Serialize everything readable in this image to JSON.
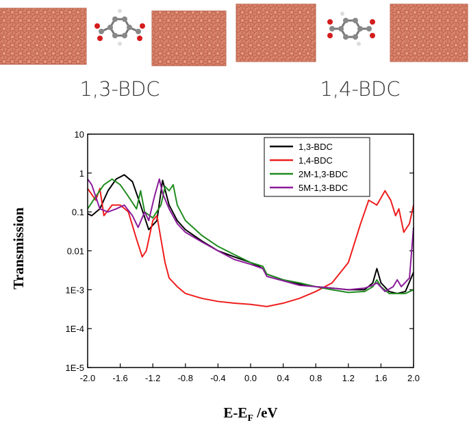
{
  "structures": {
    "labels": [
      "1,3-BDC",
      "1,4-BDC"
    ]
  },
  "chart_data": {
    "type": "line",
    "xlabel": [
      "E-E",
      "F",
      " /eV"
    ],
    "ylabel": "Transmission",
    "log_y": true,
    "legend": "upper right",
    "xlim": [
      -2.0,
      2.0
    ],
    "ylim": [
      1e-05,
      10
    ],
    "xticks": [
      {
        "value": -2.0,
        "label": "-2.0"
      },
      -1.6,
      -1.2,
      -0.8,
      -0.4,
      {
        "value": 0.0,
        "label": "0.0"
      },
      0.4,
      0.8,
      1.2,
      1.6,
      {
        "value": 2.0,
        "label": "2.0"
      }
    ],
    "yticks": [
      10,
      1,
      0.1,
      0.01,
      {
        "value": 0.001,
        "label": "1E-3"
      },
      {
        "value": 0.0001,
        "label": "1E-4"
      },
      {
        "value": 1e-05,
        "label": "1E-5"
      }
    ],
    "series": [
      {
        "name": "1,3-BDC",
        "color": "#000000",
        "x": [
          -2.0,
          -1.95,
          -1.85,
          -1.75,
          -1.65,
          -1.55,
          -1.45,
          -1.35,
          -1.25,
          -1.15,
          -1.08,
          -1.0,
          -0.9,
          -0.8,
          -0.6,
          -0.4,
          -0.2,
          0.0,
          0.1,
          0.15,
          0.2,
          0.4,
          0.6,
          0.8,
          1.0,
          1.2,
          1.4,
          1.5,
          1.55,
          1.6,
          1.7,
          1.8,
          1.9,
          2.0
        ],
        "values": [
          0.09,
          0.08,
          0.12,
          0.35,
          0.7,
          0.9,
          0.6,
          0.15,
          0.035,
          0.06,
          0.65,
          0.15,
          0.06,
          0.035,
          0.018,
          0.01,
          0.007,
          0.005,
          0.004,
          0.0035,
          0.0025,
          0.0018,
          0.0014,
          0.0012,
          0.0011,
          0.001,
          0.001,
          0.0015,
          0.0035,
          0.0015,
          0.0009,
          0.0008,
          0.0009,
          0.0028
        ]
      },
      {
        "name": "1,4-BDC",
        "color": "#ee1c1c",
        "x": [
          -2.0,
          -1.9,
          -1.85,
          -1.8,
          -1.7,
          -1.6,
          -1.5,
          -1.4,
          -1.33,
          -1.28,
          -1.2,
          -1.15,
          -1.1,
          -1.05,
          -1.0,
          -0.9,
          -0.8,
          -0.6,
          -0.4,
          -0.2,
          0.0,
          0.2,
          0.4,
          0.6,
          0.8,
          1.0,
          1.2,
          1.35,
          1.45,
          1.55,
          1.65,
          1.72,
          1.78,
          1.82,
          1.88,
          1.95,
          2.0
        ],
        "values": [
          0.4,
          0.2,
          0.4,
          0.08,
          0.15,
          0.15,
          0.1,
          0.02,
          0.007,
          0.01,
          0.06,
          0.08,
          0.02,
          0.005,
          0.002,
          0.0012,
          0.0008,
          0.0006,
          0.0005,
          0.00045,
          0.00042,
          0.00037,
          0.00045,
          0.0006,
          0.0009,
          0.0015,
          0.005,
          0.05,
          0.2,
          0.15,
          0.35,
          0.2,
          0.08,
          0.12,
          0.03,
          0.05,
          0.15
        ]
      },
      {
        "name": "2M-1,3-BDC",
        "color": "#1f8c1f",
        "x": [
          -2.0,
          -1.9,
          -1.8,
          -1.7,
          -1.6,
          -1.5,
          -1.4,
          -1.35,
          -1.3,
          -1.2,
          -1.1,
          -1.05,
          -1.0,
          -0.95,
          -0.9,
          -0.8,
          -0.6,
          -0.4,
          -0.2,
          0.0,
          0.15,
          0.2,
          0.4,
          0.6,
          0.8,
          1.0,
          1.2,
          1.4,
          1.5,
          1.55,
          1.6,
          1.7,
          1.9,
          2.0
        ],
        "values": [
          0.12,
          0.25,
          0.5,
          0.7,
          0.5,
          0.25,
          0.12,
          0.35,
          0.1,
          0.07,
          0.15,
          0.45,
          0.35,
          0.5,
          0.15,
          0.06,
          0.025,
          0.013,
          0.008,
          0.005,
          0.004,
          0.0025,
          0.0018,
          0.0015,
          0.0012,
          0.001,
          0.00085,
          0.0009,
          0.0012,
          0.0018,
          0.0012,
          0.0008,
          0.0008,
          0.001
        ]
      },
      {
        "name": "5M-1,3-BDC",
        "color": "#8b1a9b",
        "x": [
          -2.0,
          -1.95,
          -1.85,
          -1.75,
          -1.65,
          -1.55,
          -1.45,
          -1.38,
          -1.3,
          -1.25,
          -1.18,
          -1.12,
          -1.08,
          -1.0,
          -0.9,
          -0.8,
          -0.6,
          -0.4,
          -0.2,
          0.0,
          0.15,
          0.2,
          0.4,
          0.6,
          0.8,
          1.0,
          1.2,
          1.4,
          1.5,
          1.55,
          1.65,
          1.75,
          1.8,
          1.85,
          1.95,
          2.0
        ],
        "values": [
          0.7,
          0.5,
          0.12,
          0.1,
          0.12,
          0.15,
          0.08,
          0.04,
          0.1,
          0.06,
          0.25,
          0.7,
          0.3,
          0.12,
          0.05,
          0.03,
          0.017,
          0.01,
          0.006,
          0.0045,
          0.0035,
          0.0022,
          0.0017,
          0.0013,
          0.0012,
          0.0011,
          0.001,
          0.0011,
          0.0013,
          0.0015,
          0.0009,
          0.0012,
          0.0018,
          0.0012,
          0.002,
          0.04
        ]
      }
    ]
  }
}
